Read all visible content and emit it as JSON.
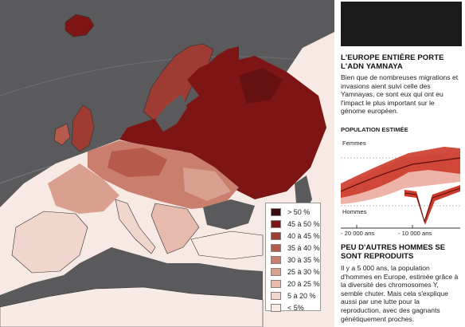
{
  "legend": {
    "items": [
      {
        "label": "> 50 %",
        "color": "#3a0c0c"
      },
      {
        "label": "45 à 50 %",
        "color": "#7e1515"
      },
      {
        "label": "40 à 45 %",
        "color": "#9e3b33"
      },
      {
        "label": "35 à 40 %",
        "color": "#b55a4c"
      },
      {
        "label": "30 à 35 %",
        "color": "#c97e6e"
      },
      {
        "label": "25 à 30 %",
        "color": "#d9a08f"
      },
      {
        "label": "20 à 25 %",
        "color": "#e6bbad"
      },
      {
        "label": "5 à 20 %",
        "color": "#f0d6cc"
      },
      {
        "label": "< 5%",
        "color": "#f8ebe5"
      }
    ]
  },
  "article": {
    "title": "L'EUROPE ENTIÈRE PORTE L'ADN YAMNAYA",
    "intro": "Bien que de nombreuses migrations et invasions aient suivi celle des Yamnayas, ce sont eux qui ont eu l'impact le plus important sur le génome européen.",
    "subtitle": "PEU D'AUTRES HOMMES SE SONT REPRODUITS",
    "body": "Il y a 5 000 ans, la population d'hommes en Europe, estimée grâce à la diversité des chromosomes Y, semble chuter. Mais cela s'explique aussi par une lutte pour la reproduction, avec des gagnants génétiquement proches."
  },
  "population_chart": {
    "label": "POPULATION ESTIMÉE",
    "series_women": "Femmes",
    "series_men": "Hommes",
    "tick_left": "- 20 000 ans",
    "tick_right": "- 10 000 ans",
    "colors": {
      "band": "#cc3a2a",
      "band_light": "#e8a092",
      "line": "#5a0e0e"
    }
  }
}
